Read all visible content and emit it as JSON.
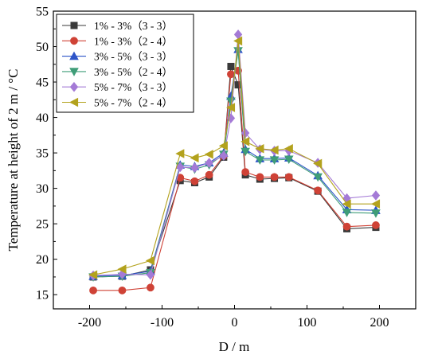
{
  "chart_data": {
    "type": "line",
    "title": "",
    "xlabel": "D / m",
    "ylabel": "Temperature at height of 2 m / °C",
    "xlim": [
      -250,
      250
    ],
    "ylim": [
      13,
      55
    ],
    "x_ticks": [
      -200,
      -100,
      0,
      100,
      200
    ],
    "y_ticks": [
      15,
      20,
      25,
      30,
      35,
      40,
      45,
      50,
      55
    ],
    "x_tick_labels": [
      "-200",
      "-100",
      "0",
      "100",
      "200"
    ],
    "y_tick_labels": [
      "15",
      "20",
      "25",
      "30",
      "35",
      "40",
      "45",
      "50",
      "55"
    ],
    "grid": false,
    "legend_position": "top-left",
    "x": [
      -195,
      -155,
      -116,
      -75,
      -55,
      -35,
      -15,
      -5,
      5,
      15,
      35,
      55,
      75,
      115,
      155,
      195
    ],
    "series": [
      {
        "name": "1% - 3%（3 - 3）",
        "color": "#3a3a3a",
        "marker": "square",
        "values": [
          17.5,
          17.6,
          18.5,
          31.1,
          30.8,
          31.6,
          34.4,
          47.2,
          44.6,
          31.9,
          31.3,
          31.4,
          31.5,
          29.6,
          24.3,
          24.5
        ]
      },
      {
        "name": "1% - 3%（2 - 4）",
        "color": "#cf4236",
        "marker": "circle",
        "values": [
          15.6,
          15.6,
          16.0,
          31.5,
          31.0,
          31.9,
          34.6,
          46.1,
          46.6,
          32.3,
          31.6,
          31.6,
          31.6,
          29.7,
          24.6,
          24.8
        ]
      },
      {
        "name": "3% - 5%（3 - 3）",
        "color": "#2e55c8",
        "marker": "triangle-up",
        "values": [
          17.6,
          17.7,
          18.3,
          33.3,
          33.1,
          33.6,
          35.0,
          43.0,
          49.6,
          35.5,
          34.2,
          34.2,
          34.3,
          31.8,
          27.0,
          26.9
        ]
      },
      {
        "name": "3% - 5%（2 - 4）",
        "color": "#3f9d78",
        "marker": "triangle-down",
        "values": [
          17.5,
          17.6,
          18.1,
          33.1,
          32.7,
          33.3,
          34.8,
          42.3,
          49.4,
          35.2,
          34.0,
          34.0,
          34.1,
          31.6,
          26.6,
          26.5
        ]
      },
      {
        "name": "5% - 7%（3 - 3）",
        "color": "#a47ad6",
        "marker": "diamond",
        "values": [
          17.7,
          17.9,
          17.8,
          33.0,
          32.9,
          33.6,
          34.6,
          39.9,
          51.7,
          37.8,
          35.5,
          35.3,
          35.3,
          33.6,
          28.6,
          29.0
        ]
      },
      {
        "name": "5% - 7%（2 - 4）",
        "color": "#b3a21d",
        "marker": "triangle-left",
        "values": [
          17.8,
          18.6,
          19.8,
          34.9,
          34.3,
          34.8,
          36.0,
          41.4,
          50.8,
          36.6,
          35.6,
          35.4,
          35.6,
          33.5,
          27.8,
          27.8
        ]
      }
    ]
  }
}
